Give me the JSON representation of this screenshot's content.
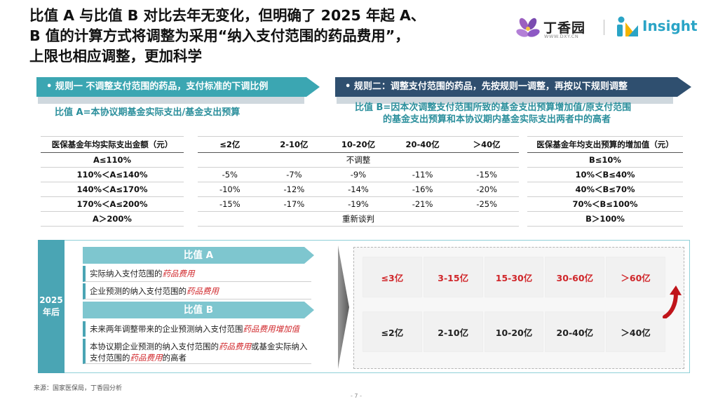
{
  "title": {
    "line1": "比值 A 与比值 B 对比去年无变化，但明确了 2025 年起 A、",
    "line2": "B 值的计算方式将调整为采用“纳入支付范围的药品费用”，",
    "line3": "上限也相应调整，更加科学"
  },
  "logos": {
    "dxy_cn": "丁香园",
    "dxy_url": "WWW.DXY.CN",
    "insight": "Insight"
  },
  "colors": {
    "teal": "#3ba6b2",
    "navy": "#2f4f6f",
    "red": "#d0262a",
    "light_teal": "#7ec6cf"
  },
  "rules": {
    "rule1": "• 规则一  不调整支付范围的药品，支付标准的下调比例",
    "rule2": "• 规则二：调整支付范围的药品，先按规则一调整，再按以下规则调整"
  },
  "formulas": {
    "a": "比值 A=本协议期基金实际支出/基金支出预算",
    "b_line1": "比值 B=因本次调整支付范围所致的基金支出预算增加值/原支付范围",
    "b_line2": "的基金支出预算和本协议期内基金实际支出两者中的高者"
  },
  "left_table": {
    "header": "医保基金年均实际支出金额（元）",
    "rows": [
      "A≤110%",
      "110%＜A≤140%",
      "140%＜A≤170%",
      "170%＜A≤200%",
      "A＞200%"
    ]
  },
  "mid_table": {
    "headers": [
      "≤2亿",
      "2-10亿",
      "10-20亿",
      "20-40亿",
      "＞40亿"
    ],
    "row_no_adjust": "不调整",
    "rows": [
      [
        "-5%",
        "-7%",
        "-9%",
        "-11%",
        "-15%"
      ],
      [
        "-10%",
        "-12%",
        "-14%",
        "-16%",
        "-20%"
      ],
      [
        "-15%",
        "-17%",
        "-19%",
        "-21%",
        "-25%"
      ]
    ],
    "row_renegotiate": "重新谈判"
  },
  "right_table": {
    "header": "医保基金年均支出预算的增加值（元）",
    "rows": [
      "B≤10%",
      "10%＜B≤40%",
      "40%＜B≤70%",
      "70%＜B≤100%",
      "B＞100%"
    ]
  },
  "lower": {
    "year_line1": "2025",
    "year_line2": "年后",
    "ratio_a": "比值 A",
    "a_item1_pre": "实际纳入支付范围的",
    "a_item1_hl": "药品费用",
    "a_item2_pre": "企业预测的纳入支付范围的",
    "a_item2_hl": "药品费用",
    "ratio_b": "比值 B",
    "b_item1_pre": "未来两年调整带来的企业预测纳入支付范围",
    "b_item1_hl": "药品费用增加值",
    "b_item2_pre": "本协议期企业预测的纳入支付范围的",
    "b_item2_hl1": "药品费用",
    "b_item2_mid": "或基金实际纳入支付范围的",
    "b_item2_hl2": "药品费用",
    "b_item2_post": "的高者",
    "new_tiers": [
      "≤3亿",
      "3-15亿",
      "15-30亿",
      "30-60亿",
      "＞60亿"
    ],
    "old_tiers": [
      "≤2亿",
      "2-10亿",
      "10-20亿",
      "20-40亿",
      "＞40亿"
    ]
  },
  "source": "来源：国家医保局，丁香园分析",
  "page_number": "- 7 -"
}
